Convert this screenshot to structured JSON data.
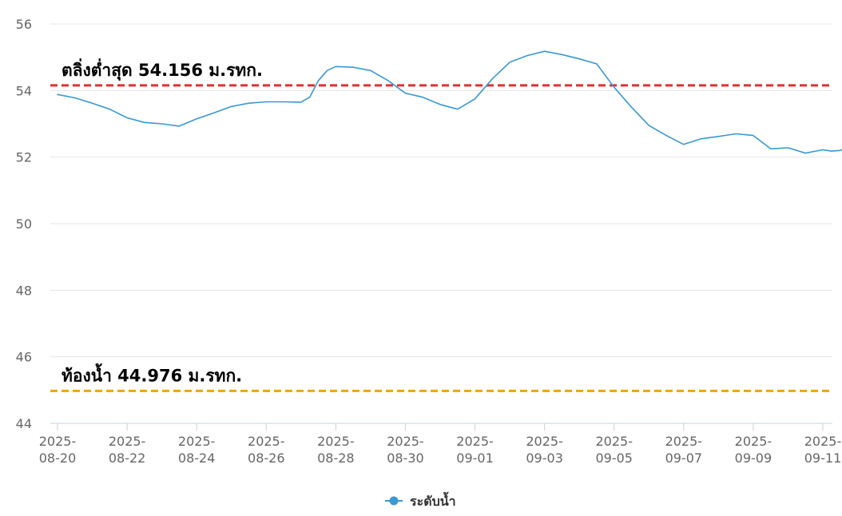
{
  "chart_data": {
    "type": "line",
    "title": "",
    "xlabel": "",
    "ylabel": "",
    "ylim": [
      44,
      56
    ],
    "y_ticks": [
      44,
      46,
      48,
      50,
      52,
      54,
      56
    ],
    "x_range": [
      "2025-08-20",
      "2025-09-11"
    ],
    "x_ticks": [
      "2025-08-20",
      "2025-08-22",
      "2025-08-24",
      "2025-08-26",
      "2025-08-28",
      "2025-08-30",
      "2025-09-01",
      "2025-09-03",
      "2025-09-05",
      "2025-09-07",
      "2025-09-09",
      "2025-09-11"
    ],
    "x_tick_labels": [
      [
        "2025-",
        "08-20"
      ],
      [
        "2025-",
        "08-22"
      ],
      [
        "2025-",
        "08-24"
      ],
      [
        "2025-",
        "08-26"
      ],
      [
        "2025-",
        "08-28"
      ],
      [
        "2025-",
        "08-30"
      ],
      [
        "2025-",
        "09-01"
      ],
      [
        "2025-",
        "09-03"
      ],
      [
        "2025-",
        "09-05"
      ],
      [
        "2025-",
        "09-07"
      ],
      [
        "2025-",
        "09-09"
      ],
      [
        "2025-",
        "09-11"
      ]
    ],
    "grid": true,
    "legend_position": "bottom-center",
    "series": [
      {
        "name": "ระดับน้ำ",
        "color": "#3a98d6",
        "points": [
          [
            "2025-08-20 00:00",
            53.88
          ],
          [
            "2025-08-20 12:00",
            53.78
          ],
          [
            "2025-08-21 00:00",
            53.62
          ],
          [
            "2025-08-21 12:00",
            53.44
          ],
          [
            "2025-08-22 00:00",
            53.18
          ],
          [
            "2025-08-22 12:00",
            53.04
          ],
          [
            "2025-08-23 00:00",
            53.0
          ],
          [
            "2025-08-23 12:00",
            52.93
          ],
          [
            "2025-08-24 00:00",
            53.15
          ],
          [
            "2025-08-24 12:00",
            53.33
          ],
          [
            "2025-08-25 00:00",
            53.52
          ],
          [
            "2025-08-25 12:00",
            53.62
          ],
          [
            "2025-08-26 00:00",
            53.66
          ],
          [
            "2025-08-26 12:00",
            53.66
          ],
          [
            "2025-08-27 00:00",
            53.65
          ],
          [
            "2025-08-27 06:00",
            53.8
          ],
          [
            "2025-08-27 12:00",
            54.3
          ],
          [
            "2025-08-27 18:00",
            54.6
          ],
          [
            "2025-08-28 00:00",
            54.72
          ],
          [
            "2025-08-28 12:00",
            54.7
          ],
          [
            "2025-08-29 00:00",
            54.6
          ],
          [
            "2025-08-29 12:00",
            54.3
          ],
          [
            "2025-08-30 00:00",
            53.92
          ],
          [
            "2025-08-30 12:00",
            53.8
          ],
          [
            "2025-08-31 00:00",
            53.58
          ],
          [
            "2025-08-31 12:00",
            53.44
          ],
          [
            "2025-09-01 00:00",
            53.75
          ],
          [
            "2025-09-01 12:00",
            54.35
          ],
          [
            "2025-09-02 00:00",
            54.85
          ],
          [
            "2025-09-02 12:00",
            55.05
          ],
          [
            "2025-09-03 00:00",
            55.18
          ],
          [
            "2025-09-03 12:00",
            55.08
          ],
          [
            "2025-09-04 00:00",
            54.95
          ],
          [
            "2025-09-04 12:00",
            54.8
          ],
          [
            "2025-09-05 00:00",
            54.1
          ],
          [
            "2025-09-05 12:00",
            53.5
          ],
          [
            "2025-09-06 00:00",
            52.95
          ],
          [
            "2025-09-06 12:00",
            52.65
          ],
          [
            "2025-09-07 00:00",
            52.38
          ],
          [
            "2025-09-07 12:00",
            52.55
          ],
          [
            "2025-09-08 00:00",
            52.62
          ],
          [
            "2025-09-08 12:00",
            52.7
          ],
          [
            "2025-09-09 00:00",
            52.65
          ],
          [
            "2025-09-09 12:00",
            52.25
          ],
          [
            "2025-09-10 00:00",
            52.28
          ],
          [
            "2025-09-10 12:00",
            52.12
          ],
          [
            "2025-09-11 00:00",
            52.22
          ],
          [
            "2025-09-11 06:00",
            52.18
          ],
          [
            "2025-09-11 12:00",
            52.2
          ],
          [
            "2025-09-11 18:00",
            52.32
          ]
        ]
      }
    ],
    "reference_lines": [
      {
        "label": "ตลิ่งต่ำสุด 54.156 ม.รทก.",
        "value": 54.156,
        "color": "#e03131"
      },
      {
        "label": "ท้องน้ำ 44.976 ม.รทก.",
        "value": 44.976,
        "color": "#f0a500"
      }
    ]
  }
}
